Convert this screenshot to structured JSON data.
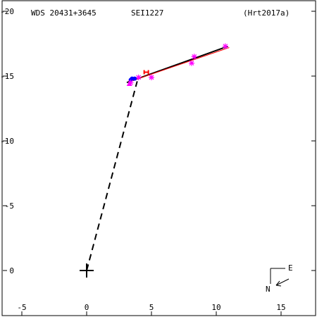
{
  "header": {
    "wds_id": "WDS 20431+3645",
    "discoverer": "SEI1227",
    "reference": "(Hrt2017a)"
  },
  "compass": {
    "east": "E",
    "north": "N"
  },
  "chart_data": {
    "type": "scatter",
    "x_axis": {
      "lim": [
        -6.5,
        17.5
      ],
      "ticks": [
        -5,
        0,
        5,
        10,
        15
      ],
      "tick_labels": [
        "-5",
        "0",
        "5",
        "10",
        "15"
      ],
      "direction": "right"
    },
    "y_axis": {
      "lim": [
        -20.5,
        3.5
      ],
      "ticks": [
        -20,
        -15,
        -10,
        -5,
        0
      ],
      "tick_labels": [
        "-20",
        "-15",
        "-10",
        "-5",
        "0"
      ],
      "direction": "down"
    },
    "primary": {
      "x": 0,
      "y": 0
    },
    "node_to_primary": [
      [
        0,
        0
      ],
      [
        3.9,
        -14.6
      ]
    ],
    "orbit_fit": {
      "color": "#000000",
      "points": [
        [
          3.1,
          -14.5
        ],
        [
          10.9,
          -17.3
        ]
      ]
    },
    "linear_fit": {
      "color": "#ff0000",
      "points": [
        [
          3.4,
          -14.6
        ],
        [
          11.0,
          -17.2
        ]
      ]
    },
    "observations": [
      {
        "x": 10.7,
        "y": -17.3,
        "marker": "asterisk",
        "color": "#ff00ff"
      },
      {
        "x": 8.3,
        "y": -16.5,
        "marker": "asterisk",
        "color": "#ff00ff"
      },
      {
        "x": 8.1,
        "y": -16.0,
        "marker": "asterisk",
        "color": "#ff00ff"
      },
      {
        "x": 5.0,
        "y": -14.9,
        "marker": "asterisk",
        "color": "#ff00ff"
      },
      {
        "x": 4.6,
        "y": -15.3,
        "marker": "square",
        "color": "#ff0000"
      },
      {
        "x": 4.0,
        "y": -14.9,
        "marker": "asterisk",
        "color": "#ff00ff"
      },
      {
        "x": 3.7,
        "y": -14.8,
        "marker": "circle",
        "color": "#0000ff"
      },
      {
        "x": 3.5,
        "y": -14.8,
        "marker": "circle",
        "color": "#0000ff"
      },
      {
        "x": 3.4,
        "y": -14.7,
        "marker": "circle",
        "color": "#0000ff"
      },
      {
        "x": 3.4,
        "y": -14.5,
        "marker": "asterisk",
        "color": "#ff00ff"
      },
      {
        "x": 3.3,
        "y": -14.4,
        "marker": "triangle",
        "color": "#ff00ff"
      }
    ]
  }
}
